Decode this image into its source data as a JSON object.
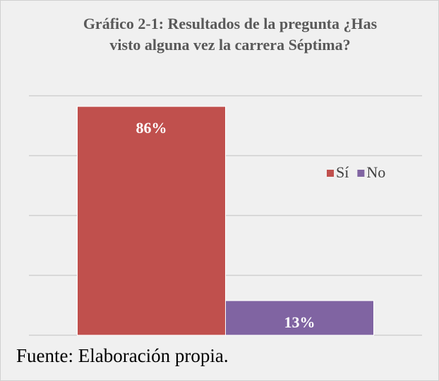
{
  "chart_data": {
    "type": "bar",
    "title": "Gráfico 2-1: Resultados de la pregunta ¿Has visto alguna vez la carrera Séptima?",
    "categories": [
      null
    ],
    "series": [
      {
        "name": "Sí",
        "color": "#c0504d",
        "values": [
          86
        ],
        "value_labels": [
          "86%"
        ]
      },
      {
        "name": "No",
        "color": "#8064a2",
        "values": [
          13
        ],
        "value_labels": [
          "13%"
        ]
      }
    ],
    "ylim": [
      0,
      90
    ],
    "yticks": [
      0,
      22.5,
      45,
      67.5,
      90
    ],
    "grid": true,
    "legend": "right",
    "source": "Fuente: Elaboración propia."
  }
}
